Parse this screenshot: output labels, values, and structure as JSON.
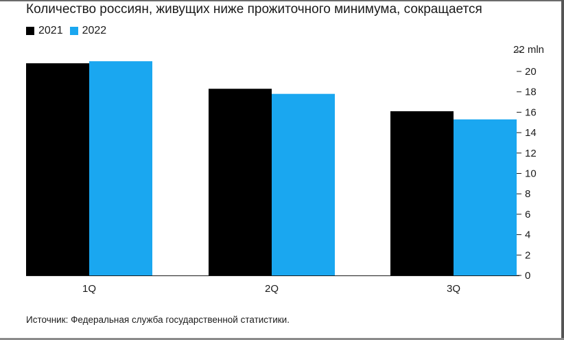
{
  "chart_data": {
    "type": "bar",
    "title": "Количество россиян, живущих ниже прожиточного минимума, сокращается",
    "unit_label": "22 mln",
    "categories": [
      "1Q",
      "2Q",
      "3Q"
    ],
    "series": [
      {
        "name": "2021",
        "color": "#000000",
        "values": [
          20.8,
          18.3,
          16.1
        ]
      },
      {
        "name": "2022",
        "color": "#1aa7f0",
        "values": [
          21.0,
          17.8,
          15.3
        ]
      }
    ],
    "yticks": [
      0,
      2,
      4,
      6,
      8,
      10,
      12,
      14,
      16,
      18,
      20
    ],
    "ylim": [
      0,
      22
    ],
    "grid": false,
    "legend_position": "top-left",
    "source": "Источник: Федеральная служба государственной статистики."
  }
}
